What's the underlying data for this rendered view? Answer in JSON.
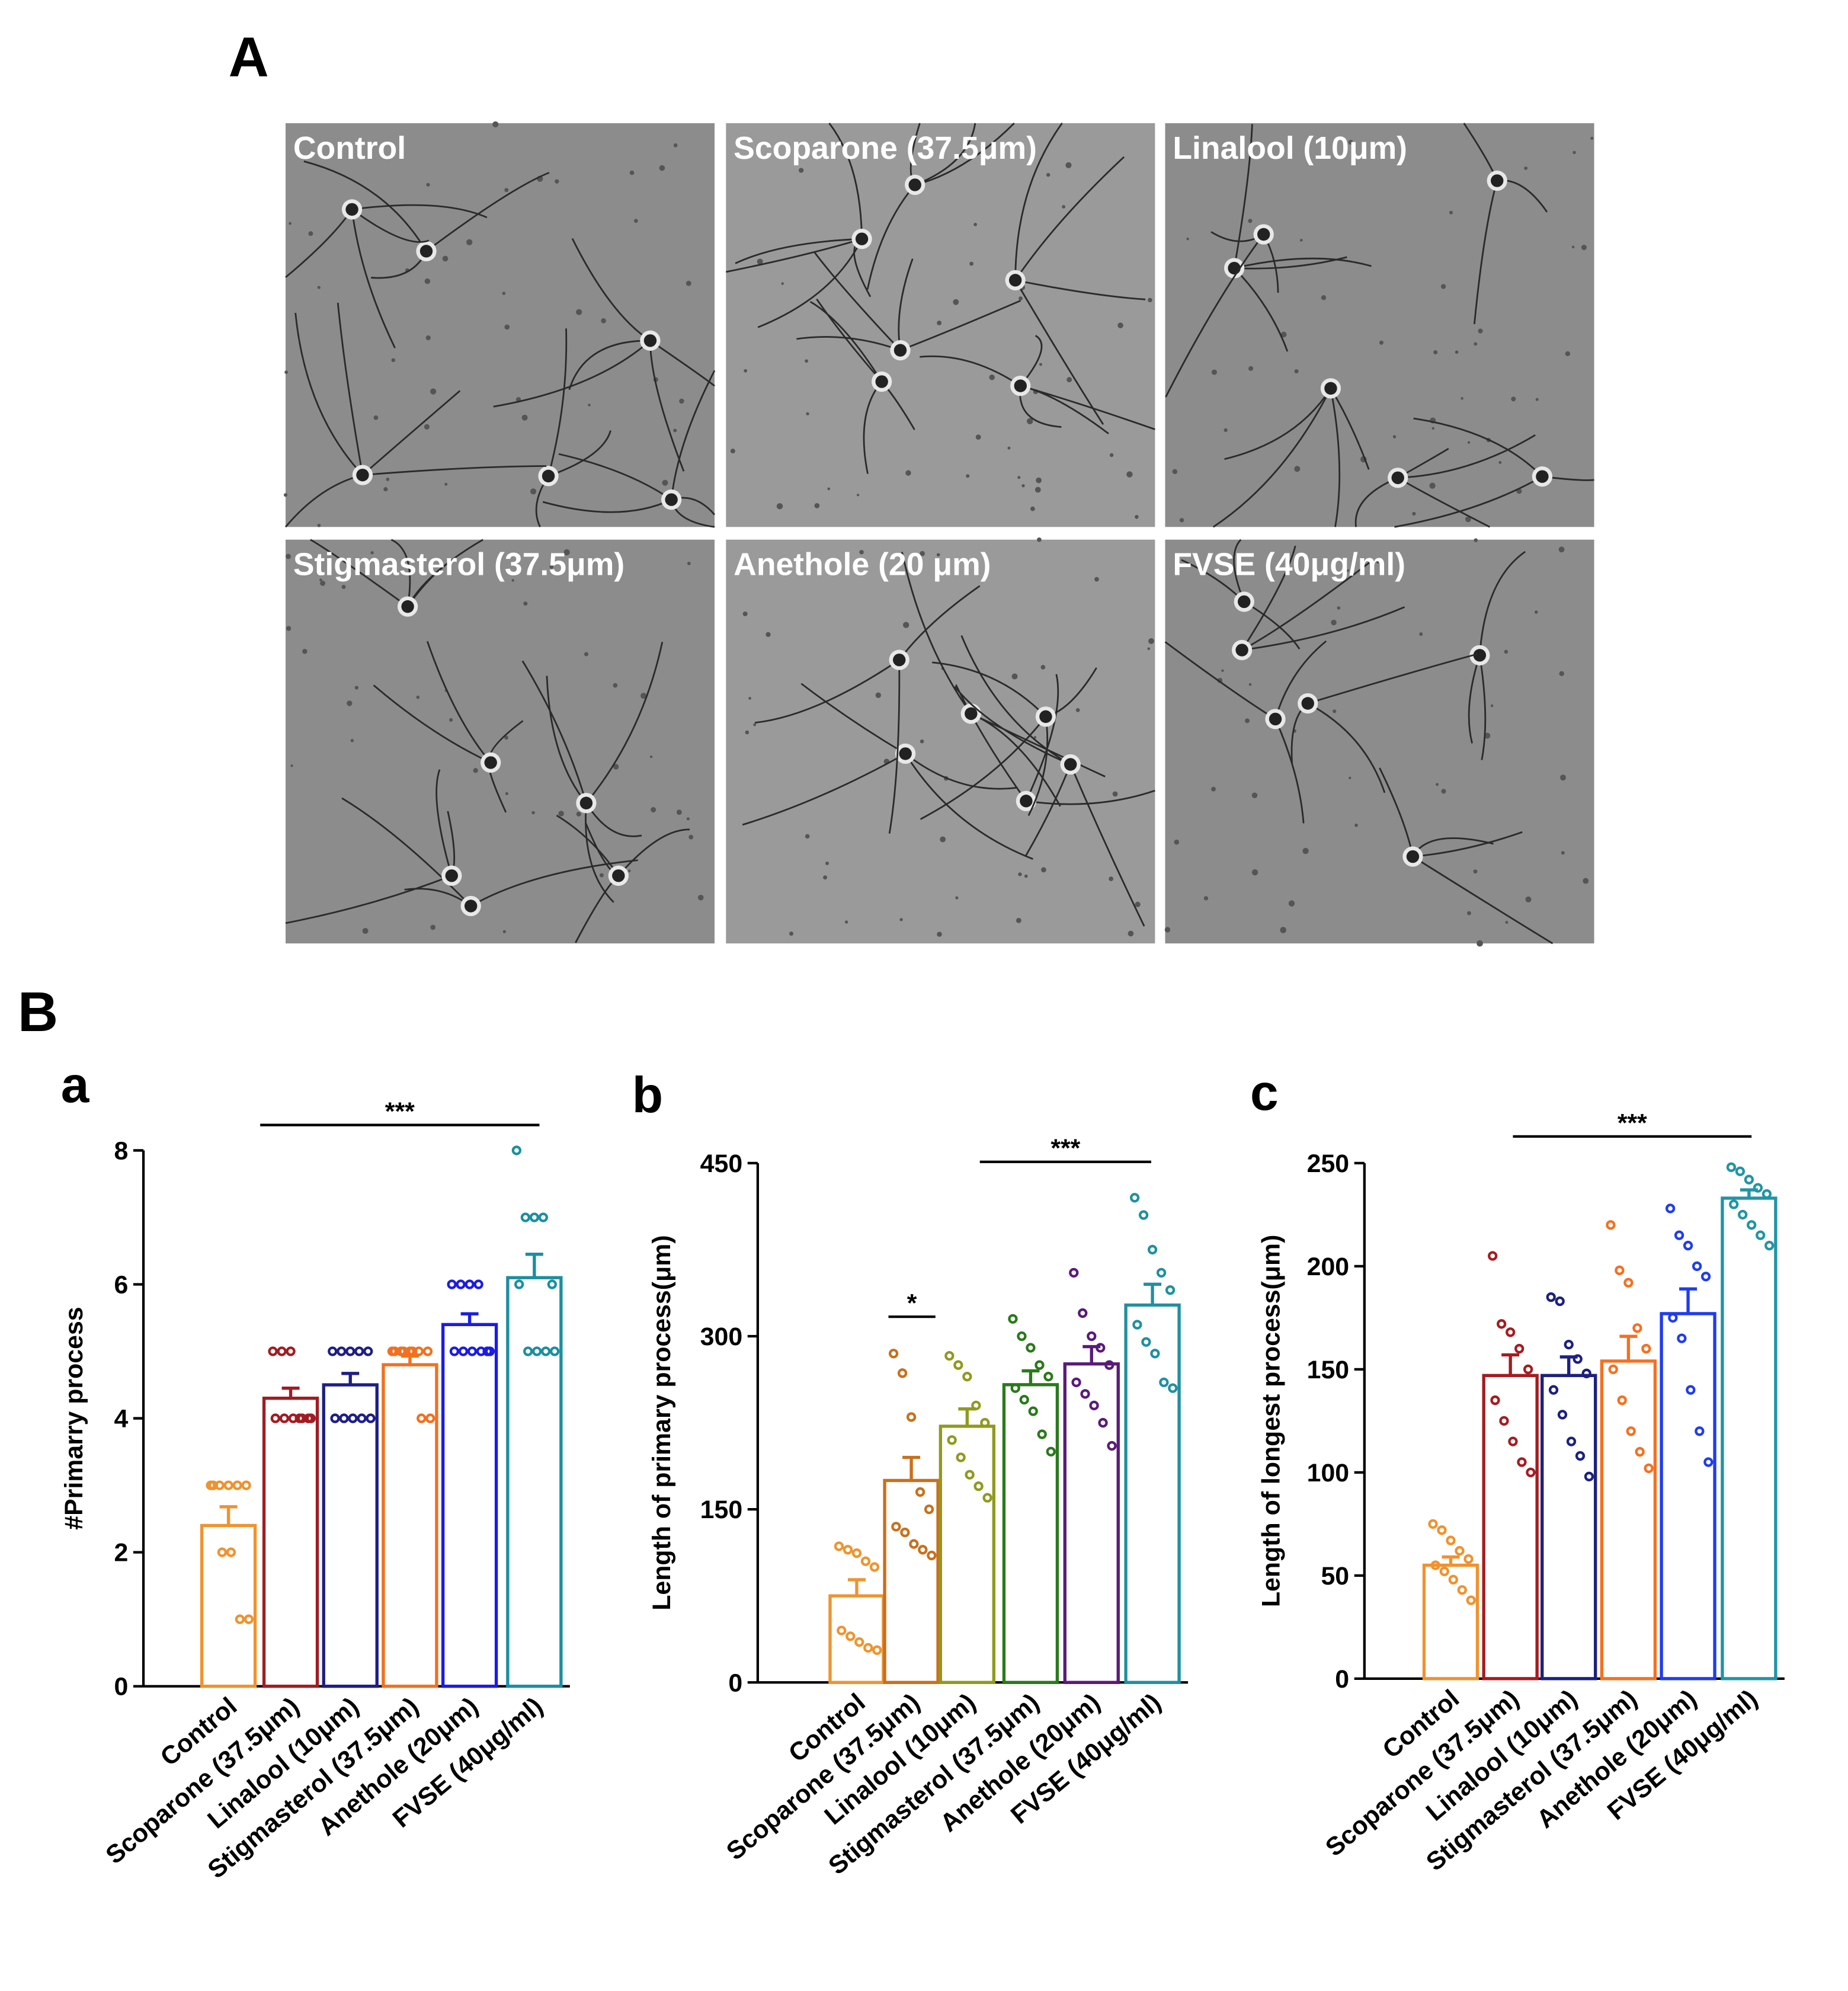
{
  "figure": {
    "panel_a": "A",
    "panel_b": "B",
    "images": [
      "Control",
      "Scoparone (37.5μm)",
      "Linalool (10μm)",
      "Stigmasterol (37.5μm)",
      "Anethole (20 μm)",
      "FVSE (40μg/ml)"
    ]
  },
  "chart_data": [
    {
      "type": "bar",
      "panel": "a",
      "ylabel": "#Primarry process",
      "categories": [
        "Control",
        "Scoparone (37.5μm)",
        "Linalool (10μm)",
        "Stigmasterol (37.5μm)",
        "Anethole (20μm)",
        "FVSE (40μg/ml)"
      ],
      "values": [
        2.4,
        4.3,
        4.5,
        4.8,
        5.4,
        6.1
      ],
      "errors": [
        0.28,
        0.15,
        0.17,
        0.13,
        0.16,
        0.35
      ],
      "points": [
        [
          3,
          3,
          3,
          3,
          3,
          3,
          2,
          2,
          1,
          1
        ],
        [
          5,
          5,
          5,
          4,
          4,
          4,
          4,
          4,
          4,
          4
        ],
        [
          5,
          5,
          5,
          5,
          5,
          4,
          4,
          4,
          4,
          4
        ],
        [
          5,
          5,
          5,
          5,
          5,
          5,
          5,
          5,
          4,
          4
        ],
        [
          6,
          6,
          6,
          6,
          5,
          5,
          5,
          5,
          5,
          5
        ],
        [
          8,
          7,
          7,
          7,
          6,
          6,
          5,
          5,
          5,
          5
        ]
      ],
      "colors": [
        "#f0922e",
        "#a11c22",
        "#1e1e86",
        "#f2701f",
        "#1b1be6",
        "#1b8fa0"
      ],
      "ylim": [
        0,
        8
      ],
      "yticks": [
        0,
        2,
        4,
        6,
        8
      ],
      "annotations": [
        "***"
      ]
    },
    {
      "type": "bar",
      "panel": "b",
      "ylabel": "Length of primary process(μm)",
      "categories": [
        "Control",
        "Scoparone (37.5μm)",
        "Linalool (10μm)",
        "Stigmasterol (37.5μm)",
        "Anethole (20μm)",
        "FVSE (40μg/ml)"
      ],
      "values": [
        75,
        175,
        222,
        258,
        276,
        327
      ],
      "errors": [
        14,
        20,
        15,
        12,
        15,
        18
      ],
      "points": [
        [
          118,
          115,
          112,
          105,
          100,
          45,
          40,
          35,
          30,
          28
        ],
        [
          285,
          268,
          230,
          165,
          150,
          135,
          130,
          120,
          115,
          110
        ],
        [
          283,
          275,
          265,
          240,
          225,
          210,
          195,
          180,
          170,
          160
        ],
        [
          315,
          300,
          290,
          275,
          265,
          255,
          245,
          235,
          215,
          200
        ],
        [
          355,
          320,
          300,
          290,
          275,
          260,
          250,
          240,
          225,
          205
        ],
        [
          420,
          405,
          375,
          355,
          340,
          310,
          295,
          285,
          260,
          255
        ]
      ],
      "colors": [
        "#ee9430",
        "#c8701c",
        "#8f9a1e",
        "#2a7a1a",
        "#5a1a7a",
        "#2090a0"
      ],
      "ylim": [
        0,
        450
      ],
      "yticks": [
        0,
        150,
        300,
        450
      ],
      "annotations": [
        "*",
        "***"
      ]
    },
    {
      "type": "bar",
      "panel": "c",
      "ylabel": "Length of longest process(μm)",
      "categories": [
        "Control",
        "Scoparone (37.5μm)",
        "Linalool (10μm)",
        "Stigmasterol (37.5μm)",
        "Anethole (20μm)",
        "FVSE (40μg/ml)"
      ],
      "values": [
        55,
        147,
        147,
        154,
        177,
        233
      ],
      "errors": [
        4,
        10,
        9,
        12,
        12,
        4
      ],
      "points": [
        [
          75,
          72,
          67,
          62,
          58,
          55,
          52,
          48,
          43,
          38
        ],
        [
          205,
          172,
          168,
          160,
          150,
          135,
          125,
          115,
          105,
          100
        ],
        [
          185,
          183,
          162,
          155,
          148,
          140,
          128,
          115,
          108,
          98
        ],
        [
          220,
          198,
          192,
          170,
          160,
          150,
          135,
          120,
          110,
          102
        ],
        [
          228,
          215,
          210,
          200,
          195,
          175,
          165,
          140,
          120,
          105
        ],
        [
          248,
          246,
          242,
          238,
          235,
          230,
          225,
          220,
          215,
          210
        ]
      ],
      "colors": [
        "#f0922e",
        "#a51c20",
        "#1c2080",
        "#f57020",
        "#1f3cf0",
        "#2095a5"
      ],
      "ylim": [
        0,
        250
      ],
      "yticks": [
        0,
        50,
        100,
        150,
        200,
        250
      ],
      "annotations": [
        "***"
      ]
    }
  ]
}
